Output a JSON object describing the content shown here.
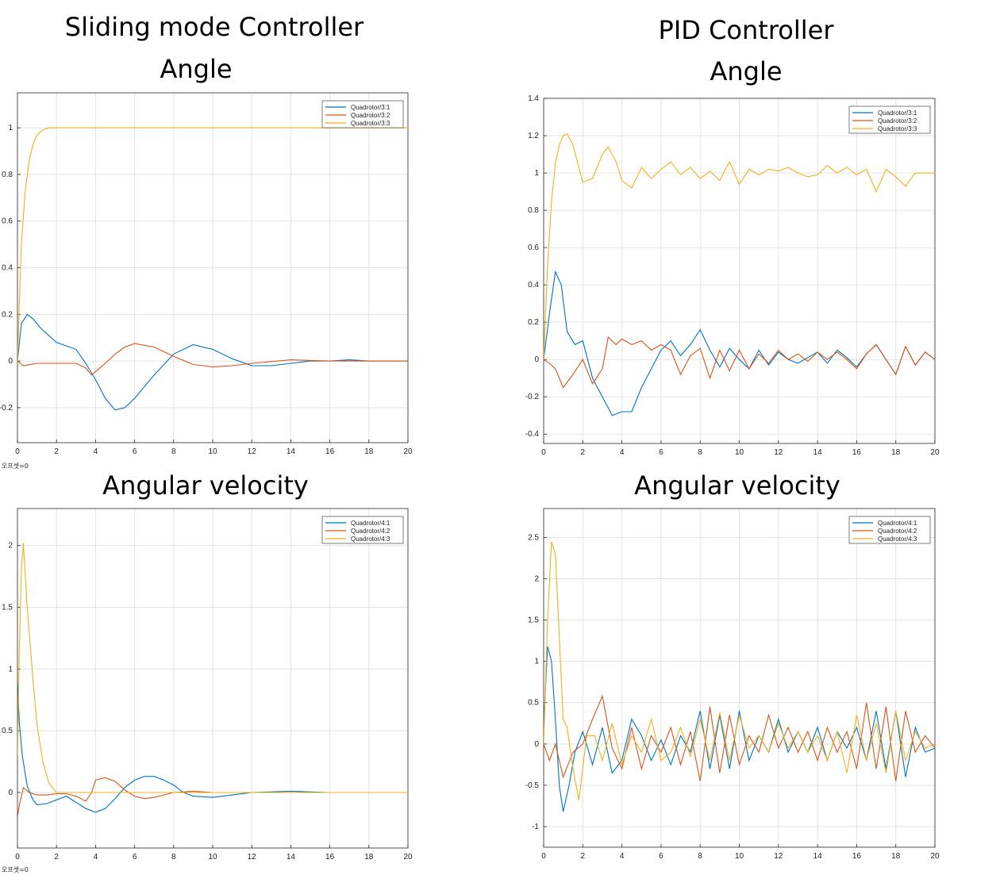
{
  "titles": {
    "smc": "Sliding mode Controller",
    "pid": "PID Controller",
    "angle_left": "Angle",
    "angle_right": "Angle",
    "angvel_left": "Angular velocity",
    "angvel_right": "Angular velocity"
  },
  "offset_label": "오프셋=0",
  "colors": {
    "s1": "#0072BD",
    "s2": "#D95319",
    "s3": "#EDB120"
  },
  "chart_data": [
    {
      "id": "smc-angle",
      "type": "line",
      "xlim": [
        0,
        20
      ],
      "ylim": [
        -0.35,
        1.15
      ],
      "xticks": [
        0,
        2,
        4,
        6,
        8,
        10,
        12,
        14,
        16,
        18,
        20
      ],
      "yticks": [
        -0.2,
        0,
        0.2,
        0.4,
        0.6,
        0.8,
        1
      ],
      "grid": true,
      "legend": "top-right",
      "series": [
        {
          "name": "Quadrotor/3:1",
          "x": [
            0,
            0.2,
            0.5,
            0.8,
            1.2,
            2,
            3,
            3.5,
            4,
            4.5,
            5,
            5.5,
            6,
            7,
            8,
            9,
            10,
            11,
            12,
            13,
            14,
            15,
            16,
            17,
            18,
            19,
            20
          ],
          "y": [
            0,
            0.16,
            0.2,
            0.18,
            0.14,
            0.08,
            0.05,
            -0.01,
            -0.08,
            -0.16,
            -0.21,
            -0.2,
            -0.16,
            -0.06,
            0.03,
            0.07,
            0.05,
            0.01,
            -0.02,
            -0.02,
            -0.01,
            0,
            0,
            0.005,
            0,
            0,
            0
          ]
        },
        {
          "name": "Quadrotor/3:2",
          "x": [
            0,
            0.3,
            1,
            2,
            3,
            3.5,
            3.8,
            4.5,
            5,
            5.5,
            6,
            7,
            8,
            9,
            10,
            11,
            12,
            14,
            16,
            18,
            20
          ],
          "y": [
            0,
            -0.02,
            -0.01,
            -0.01,
            -0.01,
            -0.03,
            -0.06,
            -0.01,
            0.03,
            0.06,
            0.075,
            0.06,
            0.02,
            -0.015,
            -0.025,
            -0.02,
            -0.01,
            0.005,
            0,
            0,
            0
          ]
        },
        {
          "name": "Quadrotor/3:3",
          "x": [
            0,
            0.2,
            0.4,
            0.6,
            0.8,
            1,
            1.3,
            1.6,
            2,
            2.5,
            3,
            5,
            8,
            12,
            16,
            20
          ],
          "y": [
            0,
            0.5,
            0.73,
            0.86,
            0.93,
            0.97,
            0.99,
            1,
            1,
            1,
            1,
            1,
            1,
            1,
            1,
            1
          ]
        }
      ]
    },
    {
      "id": "pid-angle",
      "type": "line",
      "xlim": [
        0,
        20
      ],
      "ylim": [
        -0.45,
        1.4
      ],
      "xticks": [
        0,
        2,
        4,
        6,
        8,
        10,
        12,
        14,
        16,
        18,
        20
      ],
      "yticks": [
        -0.4,
        -0.2,
        0,
        0.2,
        0.4,
        0.6,
        0.8,
        1,
        1.2,
        1.4
      ],
      "grid": true,
      "legend": "top-right",
      "series": [
        {
          "name": "Quadrotor/3:1",
          "x": [
            0,
            0.3,
            0.6,
            0.9,
            1.2,
            1.6,
            2,
            2.5,
            3,
            3.5,
            4,
            4.5,
            5,
            5.5,
            6,
            6.5,
            7,
            7.5,
            8,
            8.5,
            9,
            9.5,
            10,
            10.5,
            11,
            11.5,
            12,
            12.5,
            13,
            13.5,
            14,
            14.5,
            15,
            15.5,
            16,
            16.5,
            17,
            17.5,
            18,
            18.5,
            19,
            19.5,
            20
          ],
          "y": [
            0,
            0.25,
            0.47,
            0.4,
            0.15,
            0.08,
            0.1,
            -0.1,
            -0.2,
            -0.3,
            -0.28,
            -0.28,
            -0.15,
            -0.05,
            0.05,
            0.1,
            0.02,
            0.08,
            0.16,
            0.05,
            -0.04,
            0.06,
            0.0,
            -0.05,
            0.05,
            -0.03,
            0.04,
            0.0,
            -0.02,
            0.01,
            0.04,
            -0.02,
            0.05,
            0.01,
            -0.04,
            0.03,
            0.08,
            0.0,
            -0.08,
            0.07,
            -0.03,
            0.04,
            0.0
          ]
        },
        {
          "name": "Quadrotor/3:2",
          "x": [
            0,
            0.3,
            0.6,
            1,
            1.5,
            2,
            2.5,
            3,
            3.3,
            3.7,
            4,
            4.5,
            5,
            5.5,
            6,
            6.5,
            7,
            7.5,
            8,
            8.5,
            9,
            9.5,
            10,
            10.5,
            11,
            11.5,
            12,
            12.5,
            13,
            13.5,
            14,
            14.5,
            15,
            15.5,
            16,
            16.5,
            17,
            17.5,
            18,
            18.5,
            19,
            19.5,
            20
          ],
          "y": [
            0,
            -0.02,
            -0.05,
            -0.15,
            -0.08,
            0.0,
            -0.13,
            -0.05,
            0.12,
            0.08,
            0.11,
            0.08,
            0.1,
            0.05,
            0.08,
            0.05,
            -0.08,
            0.02,
            0.06,
            -0.1,
            0.05,
            -0.06,
            0.05,
            -0.05,
            0.03,
            -0.02,
            0.05,
            0.0,
            0.03,
            -0.01,
            0.04,
            0.0,
            0.04,
            0.0,
            -0.05,
            0.03,
            0.08,
            0.0,
            -0.08,
            0.07,
            -0.03,
            0.04,
            0.0
          ]
        },
        {
          "name": "Quadrotor/3:3",
          "x": [
            0,
            0.2,
            0.4,
            0.6,
            0.8,
            1,
            1.2,
            1.5,
            2,
            2.5,
            3,
            3.3,
            3.7,
            4,
            4.5,
            5,
            5.5,
            6,
            6.5,
            7,
            7.5,
            8,
            8.5,
            9,
            9.5,
            10,
            10.5,
            11,
            11.5,
            12,
            12.5,
            13,
            13.5,
            14,
            14.5,
            15,
            15.5,
            16,
            16.5,
            17,
            17.5,
            18,
            18.5,
            19,
            19.5,
            20
          ],
          "y": [
            0,
            0.5,
            0.85,
            1.05,
            1.15,
            1.2,
            1.21,
            1.15,
            0.95,
            0.97,
            1.1,
            1.14,
            1.06,
            0.96,
            0.92,
            1.03,
            0.97,
            1.02,
            1.06,
            0.99,
            1.03,
            0.97,
            1.01,
            0.96,
            1.06,
            0.94,
            1.02,
            0.99,
            1.02,
            1.01,
            1.03,
            1.0,
            0.98,
            0.99,
            1.04,
            1.0,
            1.03,
            0.99,
            1.02,
            0.9,
            1.02,
            0.98,
            0.93,
            1.0,
            1.0,
            1.0
          ]
        }
      ]
    },
    {
      "id": "smc-angvel",
      "type": "line",
      "xlim": [
        0,
        20
      ],
      "ylim": [
        -0.45,
        2.3
      ],
      "xticks": [
        0,
        2,
        4,
        6,
        8,
        10,
        12,
        14,
        16,
        18,
        20
      ],
      "yticks": [
        0,
        0.5,
        1,
        1.5,
        2
      ],
      "grid": true,
      "legend": "top-right",
      "series": [
        {
          "name": "Quadrotor/4:1",
          "x": [
            0,
            0.1,
            0.25,
            0.5,
            0.8,
            1,
            1.5,
            2,
            2.5,
            3,
            3.5,
            4,
            4.5,
            5,
            5.5,
            6,
            6.5,
            7,
            7.5,
            8,
            8.5,
            9,
            10,
            11,
            12,
            14,
            16,
            18,
            20
          ],
          "y": [
            0.9,
            0.55,
            0.3,
            0.05,
            -0.06,
            -0.1,
            -0.09,
            -0.06,
            -0.03,
            -0.08,
            -0.13,
            -0.16,
            -0.13,
            -0.05,
            0.04,
            0.1,
            0.13,
            0.13,
            0.1,
            0.06,
            0.0,
            -0.03,
            -0.04,
            -0.02,
            0,
            0.01,
            0.0,
            0.0,
            0
          ]
        },
        {
          "name": "Quadrotor/4:2",
          "x": [
            0,
            0.1,
            0.3,
            0.6,
            1,
            1.5,
            2,
            2.5,
            3,
            3.5,
            3.8,
            4,
            4.5,
            5,
            5.5,
            6,
            6.5,
            7,
            7.5,
            8,
            9,
            10,
            12,
            14,
            16,
            18,
            20
          ],
          "y": [
            -0.2,
            -0.1,
            0.04,
            0.0,
            -0.02,
            -0.02,
            -0.01,
            -0.01,
            -0.03,
            -0.07,
            0.0,
            0.1,
            0.12,
            0.09,
            0.02,
            -0.03,
            -0.05,
            -0.04,
            -0.02,
            0.0,
            0.01,
            0.0,
            0.0,
            0.0,
            0.0,
            0.0,
            0
          ]
        },
        {
          "name": "Quadrotor/4:3",
          "x": [
            0,
            0.1,
            0.2,
            0.3,
            0.5,
            0.8,
            1,
            1.3,
            1.6,
            2,
            3,
            4,
            6,
            8,
            10,
            12,
            14,
            16,
            18,
            20
          ],
          "y": [
            0.3,
            1.2,
            1.8,
            2.02,
            1.5,
            0.9,
            0.55,
            0.25,
            0.08,
            0.0,
            0.0,
            0.0,
            0.0,
            0.0,
            0.0,
            0.0,
            0.0,
            0.0,
            0.0,
            0
          ]
        }
      ]
    },
    {
      "id": "pid-angvel",
      "type": "line",
      "xlim": [
        0,
        20
      ],
      "ylim": [
        -1.25,
        2.85
      ],
      "xticks": [
        0,
        2,
        4,
        6,
        8,
        10,
        12,
        14,
        16,
        18,
        20
      ],
      "yticks": [
        -1,
        -0.5,
        0,
        0.5,
        1,
        1.5,
        2,
        2.5
      ],
      "grid": true,
      "legend": "top-right",
      "series": [
        {
          "name": "Quadrotor/4:1",
          "x": [
            0,
            0.2,
            0.4,
            0.6,
            0.8,
            1,
            1.3,
            1.6,
            2,
            2.5,
            3,
            3.5,
            4,
            4.5,
            5,
            5.5,
            6,
            6.5,
            7,
            7.5,
            8,
            8.5,
            9,
            9.5,
            10,
            10.5,
            11,
            11.5,
            12,
            12.5,
            13,
            13.5,
            14,
            14.5,
            15,
            15.5,
            16,
            16.5,
            17,
            17.5,
            18,
            18.5,
            19,
            19.5,
            20
          ],
          "y": [
            0.2,
            1.18,
            1.0,
            0.3,
            -0.5,
            -0.82,
            -0.5,
            -0.1,
            0.15,
            -0.25,
            0.2,
            -0.35,
            -0.2,
            0.3,
            0.1,
            -0.2,
            0.05,
            -0.25,
            0.1,
            -0.1,
            0.4,
            -0.3,
            0.35,
            -0.3,
            0.4,
            -0.2,
            0.1,
            -0.1,
            0.3,
            -0.1,
            0.15,
            -0.1,
            0.2,
            -0.2,
            0.15,
            -0.05,
            0.2,
            -0.2,
            0.4,
            -0.3,
            0.4,
            -0.4,
            0.2,
            -0.1,
            -0.05
          ]
        },
        {
          "name": "Quadrotor/4:2",
          "x": [
            0,
            0.3,
            0.6,
            1,
            1.5,
            2,
            2.5,
            3,
            3.5,
            4,
            4.5,
            5,
            5.5,
            6,
            6.5,
            7,
            7.5,
            8,
            8.5,
            9,
            9.5,
            10,
            10.5,
            11,
            11.5,
            12,
            12.5,
            13,
            13.5,
            14,
            14.5,
            15,
            15.5,
            16,
            16.5,
            17,
            17.5,
            18,
            18.5,
            19,
            19.5,
            20
          ],
          "y": [
            0,
            -0.2,
            0.0,
            -0.4,
            -0.1,
            0.0,
            0.3,
            0.58,
            -0.05,
            -0.3,
            0.2,
            -0.3,
            0.1,
            -0.1,
            0.2,
            -0.25,
            0.15,
            -0.45,
            0.45,
            -0.35,
            0.35,
            -0.25,
            0.1,
            -0.1,
            0.35,
            -0.05,
            0.2,
            -0.1,
            0.15,
            -0.2,
            0.2,
            -0.1,
            0.15,
            -0.3,
            0.5,
            -0.3,
            0.45,
            -0.45,
            0.4,
            -0.1,
            0.1,
            -0.05
          ]
        },
        {
          "name": "Quadrotor/4:3",
          "x": [
            0,
            0.2,
            0.4,
            0.6,
            0.8,
            1,
            1.2,
            1.5,
            1.8,
            2.2,
            2.6,
            3,
            3.5,
            4,
            4.5,
            5,
            5.5,
            6,
            6.5,
            7,
            7.5,
            8,
            8.5,
            9,
            9.5,
            10,
            10.5,
            11,
            11.5,
            12,
            12.5,
            13,
            13.5,
            14,
            14.5,
            15,
            15.5,
            16,
            16.5,
            17,
            17.5,
            18,
            18.5,
            19,
            19.5,
            20
          ],
          "y": [
            0,
            1.5,
            2.45,
            2.3,
            1.3,
            0.3,
            0.2,
            -0.3,
            -0.68,
            0.1,
            0.1,
            -0.2,
            0.25,
            -0.25,
            0.1,
            -0.1,
            0.3,
            -0.2,
            -0.1,
            0.2,
            -0.15,
            0.3,
            -0.2,
            0.38,
            -0.2,
            0.35,
            -0.05,
            0.1,
            -0.1,
            0.25,
            -0.05,
            0.15,
            -0.1,
            0.1,
            -0.2,
            0.15,
            -0.35,
            0.35,
            -0.2,
            0.25,
            -0.35,
            0.4,
            -0.2,
            0.15,
            -0.05,
            0.0
          ]
        }
      ]
    }
  ]
}
